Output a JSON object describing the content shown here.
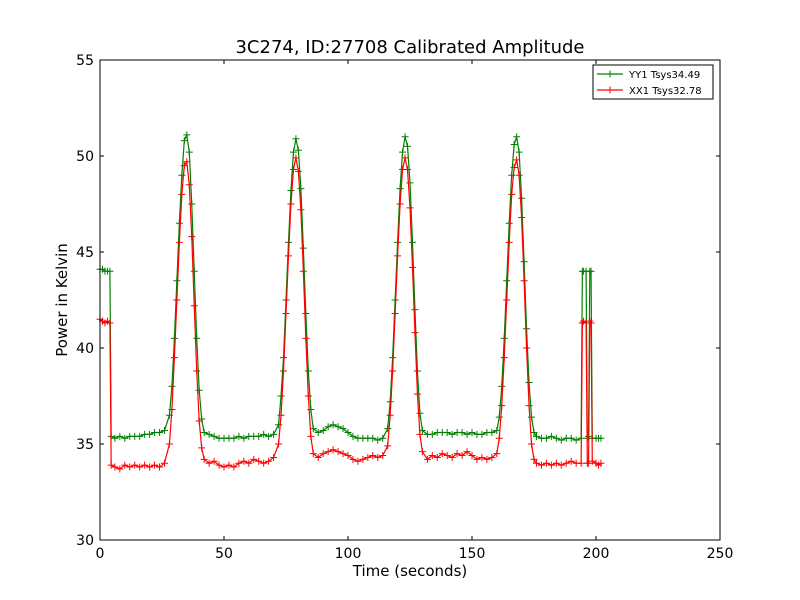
{
  "chart_data": {
    "type": "line",
    "title": "3C274, ID:27708 Calibrated Amplitude",
    "xlabel": "Time (seconds)",
    "ylabel": "Power in Kelvin",
    "xlim": [
      0,
      250
    ],
    "ylim": [
      30,
      55
    ],
    "xticks": [
      "0",
      "50",
      "100",
      "150",
      "200",
      "250"
    ],
    "yticks": [
      "30",
      "35",
      "40",
      "45",
      "50",
      "55"
    ],
    "grid": false,
    "legend_position": "top-right",
    "marker": "+",
    "series": [
      {
        "name": "YY1 Tsys34.49",
        "color": "#008000",
        "points": [
          [
            0,
            44.1
          ],
          [
            1,
            44.1
          ],
          [
            2,
            44.0
          ],
          [
            3,
            44.0
          ],
          [
            4,
            44.0
          ],
          [
            4.5,
            35.4
          ],
          [
            6,
            35.3
          ],
          [
            8,
            35.4
          ],
          [
            10,
            35.3
          ],
          [
            12,
            35.4
          ],
          [
            14,
            35.4
          ],
          [
            16,
            35.4
          ],
          [
            18,
            35.5
          ],
          [
            20,
            35.5
          ],
          [
            22,
            35.6
          ],
          [
            24,
            35.6
          ],
          [
            26,
            35.7
          ],
          [
            28,
            36.5
          ],
          [
            29,
            38.0
          ],
          [
            30,
            40.5
          ],
          [
            31,
            43.5
          ],
          [
            32,
            46.5
          ],
          [
            33,
            49.0
          ],
          [
            34,
            50.8
          ],
          [
            35,
            51.1
          ],
          [
            36,
            50.2
          ],
          [
            37,
            47.5
          ],
          [
            38,
            44.0
          ],
          [
            39,
            40.5
          ],
          [
            40,
            37.8
          ],
          [
            41,
            36.3
          ],
          [
            42,
            35.6
          ],
          [
            44,
            35.5
          ],
          [
            46,
            35.4
          ],
          [
            48,
            35.3
          ],
          [
            50,
            35.3
          ],
          [
            52,
            35.3
          ],
          [
            54,
            35.3
          ],
          [
            56,
            35.4
          ],
          [
            58,
            35.3
          ],
          [
            60,
            35.4
          ],
          [
            62,
            35.4
          ],
          [
            64,
            35.4
          ],
          [
            66,
            35.5
          ],
          [
            68,
            35.4
          ],
          [
            70,
            35.5
          ],
          [
            72,
            36.0
          ],
          [
            73,
            37.5
          ],
          [
            74,
            39.5
          ],
          [
            75,
            42.5
          ],
          [
            76,
            45.5
          ],
          [
            77,
            48.2
          ],
          [
            78,
            50.2
          ],
          [
            79,
            50.9
          ],
          [
            80,
            50.3
          ],
          [
            81,
            48.3
          ],
          [
            82,
            45.2
          ],
          [
            83,
            41.8
          ],
          [
            84,
            38.8
          ],
          [
            85,
            36.8
          ],
          [
            86,
            35.8
          ],
          [
            88,
            35.6
          ],
          [
            90,
            35.7
          ],
          [
            92,
            35.9
          ],
          [
            94,
            36.0
          ],
          [
            96,
            35.9
          ],
          [
            98,
            35.8
          ],
          [
            100,
            35.6
          ],
          [
            102,
            35.4
          ],
          [
            104,
            35.3
          ],
          [
            106,
            35.3
          ],
          [
            108,
            35.3
          ],
          [
            110,
            35.3
          ],
          [
            112,
            35.2
          ],
          [
            114,
            35.3
          ],
          [
            116,
            35.8
          ],
          [
            117,
            37.2
          ],
          [
            118,
            39.5
          ],
          [
            119,
            42.5
          ],
          [
            120,
            45.5
          ],
          [
            121,
            48.3
          ],
          [
            122,
            50.2
          ],
          [
            123,
            51.0
          ],
          [
            124,
            50.5
          ],
          [
            125,
            48.6
          ],
          [
            126,
            45.5
          ],
          [
            127,
            42.0
          ],
          [
            128,
            38.8
          ],
          [
            129,
            36.6
          ],
          [
            130,
            35.7
          ],
          [
            132,
            35.5
          ],
          [
            134,
            35.5
          ],
          [
            136,
            35.6
          ],
          [
            138,
            35.6
          ],
          [
            140,
            35.6
          ],
          [
            142,
            35.5
          ],
          [
            144,
            35.6
          ],
          [
            146,
            35.6
          ],
          [
            148,
            35.5
          ],
          [
            150,
            35.6
          ],
          [
            152,
            35.5
          ],
          [
            154,
            35.5
          ],
          [
            156,
            35.6
          ],
          [
            158,
            35.6
          ],
          [
            160,
            35.7
          ],
          [
            161,
            36.4
          ],
          [
            162,
            38.0
          ],
          [
            163,
            40.5
          ],
          [
            164,
            43.5
          ],
          [
            165,
            46.5
          ],
          [
            166,
            49.0
          ],
          [
            167,
            50.6
          ],
          [
            168,
            51.0
          ],
          [
            169,
            50.2
          ],
          [
            170,
            47.8
          ],
          [
            171,
            44.5
          ],
          [
            172,
            41.0
          ],
          [
            173,
            38.2
          ],
          [
            174,
            36.4
          ],
          [
            175,
            35.6
          ],
          [
            176,
            35.4
          ],
          [
            178,
            35.3
          ],
          [
            180,
            35.3
          ],
          [
            182,
            35.4
          ],
          [
            184,
            35.3
          ],
          [
            186,
            35.2
          ],
          [
            188,
            35.3
          ],
          [
            190,
            35.3
          ],
          [
            192,
            35.2
          ],
          [
            194,
            35.3
          ],
          [
            194.5,
            44.0
          ],
          [
            195,
            44.0
          ],
          [
            196,
            44.0
          ],
          [
            196.5,
            35.3
          ],
          [
            197,
            35.4
          ],
          [
            197.5,
            44.0
          ],
          [
            198,
            44.0
          ],
          [
            198.5,
            35.3
          ],
          [
            200,
            35.3
          ],
          [
            201,
            35.3
          ],
          [
            202,
            35.3
          ]
        ]
      },
      {
        "name": "XX1 Tsys32.78",
        "color": "#ff0000",
        "points": [
          [
            0,
            41.5
          ],
          [
            1,
            41.4
          ],
          [
            2,
            41.3
          ],
          [
            3,
            41.4
          ],
          [
            4,
            41.3
          ],
          [
            4.5,
            33.9
          ],
          [
            6,
            33.8
          ],
          [
            8,
            33.7
          ],
          [
            10,
            33.9
          ],
          [
            12,
            33.8
          ],
          [
            14,
            33.9
          ],
          [
            16,
            33.8
          ],
          [
            18,
            33.9
          ],
          [
            20,
            33.8
          ],
          [
            22,
            33.9
          ],
          [
            24,
            33.8
          ],
          [
            26,
            34.0
          ],
          [
            28,
            35.0
          ],
          [
            29,
            36.8
          ],
          [
            30,
            39.5
          ],
          [
            31,
            42.5
          ],
          [
            32,
            45.5
          ],
          [
            33,
            48.0
          ],
          [
            34,
            49.5
          ],
          [
            35,
            49.7
          ],
          [
            36,
            48.5
          ],
          [
            37,
            45.8
          ],
          [
            38,
            42.2
          ],
          [
            39,
            38.8
          ],
          [
            40,
            36.2
          ],
          [
            41,
            34.8
          ],
          [
            42,
            34.2
          ],
          [
            44,
            34.0
          ],
          [
            46,
            34.1
          ],
          [
            48,
            33.9
          ],
          [
            50,
            33.8
          ],
          [
            52,
            33.9
          ],
          [
            54,
            33.8
          ],
          [
            56,
            34.0
          ],
          [
            58,
            34.1
          ],
          [
            60,
            34.0
          ],
          [
            62,
            34.2
          ],
          [
            64,
            34.1
          ],
          [
            66,
            34.0
          ],
          [
            68,
            34.1
          ],
          [
            70,
            34.3
          ],
          [
            72,
            35.0
          ],
          [
            73,
            36.5
          ],
          [
            74,
            38.8
          ],
          [
            75,
            41.8
          ],
          [
            76,
            44.8
          ],
          [
            77,
            47.5
          ],
          [
            78,
            49.3
          ],
          [
            79,
            49.9
          ],
          [
            80,
            49.2
          ],
          [
            81,
            47.2
          ],
          [
            82,
            44.0
          ],
          [
            83,
            40.5
          ],
          [
            84,
            37.5
          ],
          [
            85,
            35.4
          ],
          [
            86,
            34.5
          ],
          [
            88,
            34.3
          ],
          [
            90,
            34.5
          ],
          [
            92,
            34.6
          ],
          [
            94,
            34.7
          ],
          [
            96,
            34.6
          ],
          [
            98,
            34.5
          ],
          [
            100,
            34.4
          ],
          [
            102,
            34.2
          ],
          [
            104,
            34.1
          ],
          [
            106,
            34.2
          ],
          [
            108,
            34.3
          ],
          [
            110,
            34.4
          ],
          [
            112,
            34.3
          ],
          [
            114,
            34.4
          ],
          [
            116,
            34.9
          ],
          [
            117,
            36.5
          ],
          [
            118,
            38.8
          ],
          [
            119,
            41.8
          ],
          [
            120,
            44.8
          ],
          [
            121,
            47.5
          ],
          [
            122,
            49.3
          ],
          [
            123,
            49.9
          ],
          [
            124,
            49.3
          ],
          [
            125,
            47.3
          ],
          [
            126,
            44.2
          ],
          [
            127,
            40.8
          ],
          [
            128,
            37.6
          ],
          [
            129,
            35.5
          ],
          [
            130,
            34.6
          ],
          [
            132,
            34.2
          ],
          [
            134,
            34.4
          ],
          [
            136,
            34.3
          ],
          [
            138,
            34.5
          ],
          [
            140,
            34.4
          ],
          [
            142,
            34.3
          ],
          [
            144,
            34.5
          ],
          [
            146,
            34.4
          ],
          [
            148,
            34.6
          ],
          [
            150,
            34.4
          ],
          [
            152,
            34.2
          ],
          [
            154,
            34.3
          ],
          [
            156,
            34.2
          ],
          [
            158,
            34.3
          ],
          [
            160,
            34.5
          ],
          [
            161,
            35.3
          ],
          [
            162,
            37.0
          ],
          [
            163,
            39.5
          ],
          [
            164,
            42.5
          ],
          [
            165,
            45.5
          ],
          [
            166,
            48.0
          ],
          [
            167,
            49.4
          ],
          [
            168,
            49.8
          ],
          [
            169,
            49.0
          ],
          [
            170,
            46.8
          ],
          [
            171,
            43.5
          ],
          [
            172,
            40.0
          ],
          [
            173,
            37.0
          ],
          [
            174,
            35.0
          ],
          [
            175,
            34.2
          ],
          [
            176,
            34.0
          ],
          [
            178,
            33.9
          ],
          [
            180,
            34.0
          ],
          [
            182,
            33.9
          ],
          [
            184,
            34.0
          ],
          [
            186,
            33.9
          ],
          [
            188,
            34.0
          ],
          [
            190,
            34.1
          ],
          [
            192,
            34.0
          ],
          [
            194,
            34.0
          ],
          [
            194.5,
            41.3
          ],
          [
            195,
            41.4
          ],
          [
            196,
            41.3
          ],
          [
            196.5,
            34.0
          ],
          [
            197,
            34.0
          ],
          [
            197.5,
            41.4
          ],
          [
            198,
            41.3
          ],
          [
            198.5,
            34.1
          ],
          [
            200,
            34.0
          ],
          [
            201,
            33.9
          ],
          [
            202,
            34.0
          ]
        ]
      }
    ]
  }
}
